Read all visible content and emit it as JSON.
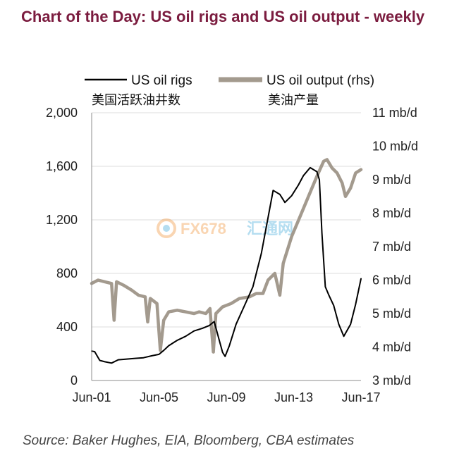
{
  "title": "Chart of the Day: US oil rigs and US oil output - weekly",
  "source": "Source: Baker Hughes, EIA, Bloomberg, CBA estimates",
  "watermark": {
    "brand": "FX678",
    "cn": "汇通网"
  },
  "chart_data": {
    "type": "line",
    "title": "Chart of the Day: US oil rigs and US oil output - weekly",
    "x_tick_labels": [
      "Jun-01",
      "Jun-05",
      "Jun-09",
      "Jun-13",
      "Jun-17"
    ],
    "x_ticks": [
      2001.42,
      2005.42,
      2009.42,
      2013.42,
      2017.42
    ],
    "xlim": [
      2001.42,
      2017.42
    ],
    "y_left": {
      "ticks": [
        0,
        400,
        800,
        1200,
        1600,
        2000
      ],
      "tick_labels": [
        "0",
        "400",
        "800",
        "1,200",
        "1,600",
        "2,000"
      ],
      "ylim": [
        0,
        2000
      ]
    },
    "y_right": {
      "ticks": [
        3,
        4,
        5,
        6,
        7,
        8,
        9,
        10,
        11
      ],
      "tick_labels": [
        "3 mb/d",
        "4 mb/d",
        "5 mb/d",
        "6 mb/d",
        "7 mb/d",
        "8 mb/d",
        "9 mb/d",
        "10 mb/d",
        "11 mb/d"
      ],
      "ylim": [
        3,
        11
      ]
    },
    "grid": true,
    "legend_position": "top",
    "series": [
      {
        "name": "US oil rigs",
        "name_cn": "美国活跃油井数",
        "axis": "left",
        "color": "#000000",
        "points": [
          [
            2001.42,
            220
          ],
          [
            2001.6,
            215
          ],
          [
            2001.9,
            150
          ],
          [
            2002.2,
            140
          ],
          [
            2002.6,
            130
          ],
          [
            2003.0,
            155
          ],
          [
            2003.5,
            160
          ],
          [
            2004.0,
            165
          ],
          [
            2004.5,
            170
          ],
          [
            2005.0,
            185
          ],
          [
            2005.42,
            195
          ],
          [
            2005.7,
            225
          ],
          [
            2006.0,
            260
          ],
          [
            2006.5,
            300
          ],
          [
            2007.0,
            330
          ],
          [
            2007.5,
            370
          ],
          [
            2008.0,
            390
          ],
          [
            2008.4,
            410
          ],
          [
            2008.7,
            440
          ],
          [
            2009.0,
            300
          ],
          [
            2009.2,
            210
          ],
          [
            2009.35,
            180
          ],
          [
            2009.6,
            260
          ],
          [
            2010.0,
            420
          ],
          [
            2010.5,
            560
          ],
          [
            2011.0,
            700
          ],
          [
            2011.5,
            950
          ],
          [
            2011.8,
            1150
          ],
          [
            2012.2,
            1420
          ],
          [
            2012.6,
            1390
          ],
          [
            2012.9,
            1330
          ],
          [
            2013.3,
            1380
          ],
          [
            2013.7,
            1460
          ],
          [
            2014.0,
            1530
          ],
          [
            2014.4,
            1590
          ],
          [
            2014.8,
            1560
          ],
          [
            2014.95,
            1500
          ],
          [
            2015.1,
            1100
          ],
          [
            2015.3,
            700
          ],
          [
            2015.5,
            640
          ],
          [
            2015.8,
            560
          ],
          [
            2016.1,
            420
          ],
          [
            2016.4,
            330
          ],
          [
            2016.8,
            420
          ],
          [
            2017.1,
            570
          ],
          [
            2017.42,
            760
          ]
        ]
      },
      {
        "name": "US oil output (rhs)",
        "name_cn": "美油产量",
        "axis": "right",
        "color": "#a39a8e",
        "points": [
          [
            2001.42,
            5.9
          ],
          [
            2001.8,
            6.0
          ],
          [
            2002.2,
            5.95
          ],
          [
            2002.6,
            5.9
          ],
          [
            2002.75,
            4.8
          ],
          [
            2002.9,
            5.95
          ],
          [
            2003.3,
            5.85
          ],
          [
            2003.8,
            5.7
          ],
          [
            2004.2,
            5.55
          ],
          [
            2004.6,
            5.5
          ],
          [
            2004.75,
            4.75
          ],
          [
            2004.9,
            5.45
          ],
          [
            2005.3,
            5.3
          ],
          [
            2005.5,
            3.9
          ],
          [
            2005.7,
            4.8
          ],
          [
            2006.0,
            5.05
          ],
          [
            2006.5,
            5.1
          ],
          [
            2007.0,
            5.05
          ],
          [
            2007.5,
            5.0
          ],
          [
            2007.8,
            5.05
          ],
          [
            2008.2,
            5.0
          ],
          [
            2008.45,
            5.15
          ],
          [
            2008.65,
            3.85
          ],
          [
            2008.8,
            5.0
          ],
          [
            2009.2,
            5.2
          ],
          [
            2009.7,
            5.3
          ],
          [
            2010.2,
            5.45
          ],
          [
            2010.8,
            5.5
          ],
          [
            2011.2,
            5.6
          ],
          [
            2011.6,
            5.6
          ],
          [
            2011.9,
            6.0
          ],
          [
            2012.3,
            6.2
          ],
          [
            2012.6,
            5.55
          ],
          [
            2012.8,
            6.5
          ],
          [
            2013.3,
            7.3
          ],
          [
            2013.8,
            7.9
          ],
          [
            2014.3,
            8.5
          ],
          [
            2014.8,
            9.1
          ],
          [
            2015.2,
            9.55
          ],
          [
            2015.4,
            9.6
          ],
          [
            2015.7,
            9.35
          ],
          [
            2016.0,
            9.2
          ],
          [
            2016.3,
            8.9
          ],
          [
            2016.5,
            8.5
          ],
          [
            2016.8,
            8.75
          ],
          [
            2017.1,
            9.2
          ],
          [
            2017.42,
            9.3
          ]
        ]
      }
    ]
  }
}
